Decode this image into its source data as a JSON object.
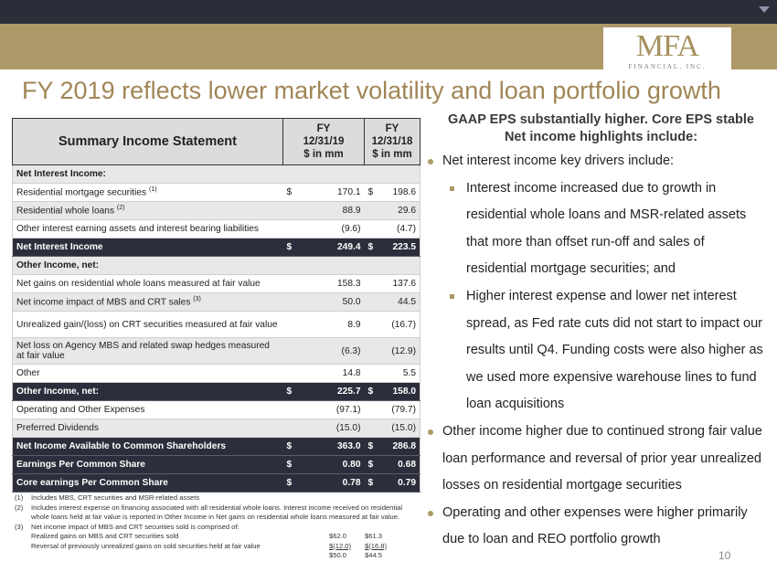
{
  "header": {
    "logo_main": "MFA",
    "logo_sub": "FINANCIAL, INC."
  },
  "title": "FY 2019 reflects lower market volatility and loan portfolio growth",
  "table": {
    "title": "Summary Income Statement",
    "col1": [
      "FY",
      "12/31/19",
      "$ in mm"
    ],
    "col2": [
      "FY",
      "12/31/18",
      "$ in mm"
    ],
    "rows": [
      {
        "label": "Net Interest Income:",
        "v1": "",
        "v2": ""
      },
      {
        "label": "Residential mortgage securities",
        "sup": "(1)",
        "d1": "$",
        "v1": "170.1",
        "d2": "$",
        "v2": "198.6"
      },
      {
        "label": "Residential whole loans",
        "sup": "(2)",
        "d1": "",
        "v1": "88.9",
        "d2": "",
        "v2": "29.6"
      },
      {
        "label": "Other interest earning assets and interest bearing liabilities",
        "d1": "",
        "v1": "(9.6)",
        "d2": "",
        "v2": "(4.7)"
      },
      {
        "label": "Net Interest Income",
        "d1": "$",
        "v1": "249.4",
        "d2": "$",
        "v2": "223.5"
      },
      {
        "label": "Other Income, net:",
        "v1": "",
        "v2": ""
      },
      {
        "label": "Net gains on residential whole loans measured at fair value",
        "d1": "",
        "v1": "158.3",
        "d2": "",
        "v2": "137.6"
      },
      {
        "label": "Net income impact of MBS and CRT sales",
        "sup": "(3)",
        "d1": "",
        "v1": "50.0",
        "d2": "",
        "v2": "44.5"
      },
      {
        "label": "Unrealized gain/(loss) on CRT securities measured at fair value",
        "d1": "",
        "v1": "8.9",
        "d2": "",
        "v2": "(16.7)"
      },
      {
        "label": "Net loss on Agency MBS and related swap hedges measured at fair value",
        "d1": "",
        "v1": "(6.3)",
        "d2": "",
        "v2": "(12.9)"
      },
      {
        "label": "Other",
        "d1": "",
        "v1": "14.8",
        "d2": "",
        "v2": "5.5"
      },
      {
        "label": "Other Income, net:",
        "d1": "$",
        "v1": "225.7",
        "d2": "$",
        "v2": "158.0"
      },
      {
        "label": "Operating and Other Expenses",
        "d1": "",
        "v1": "(97.1)",
        "d2": "",
        "v2": "(79.7)"
      },
      {
        "label": "Preferred Dividends",
        "d1": "",
        "v1": "(15.0)",
        "d2": "",
        "v2": "(15.0)"
      },
      {
        "label": "Net Income Available to Common Shareholders",
        "d1": "$",
        "v1": "363.0",
        "d2": "$",
        "v2": "286.8"
      },
      {
        "label": "Earnings Per Common Share",
        "d1": "$",
        "v1": "0.80",
        "d2": "$",
        "v2": "0.68"
      },
      {
        "label": "Core earnings Per Common Share",
        "d1": "$",
        "v1": "0.78",
        "d2": "$",
        "v2": "0.79"
      }
    ]
  },
  "footnotes": {
    "n1": {
      "num": "(1)",
      "text": "Includes MBS, CRT securities and MSR-related assets"
    },
    "n2": {
      "num": "(2)",
      "text": "Includes interest expense on financing associated with all residential whole loans. Interest income received on residential whole loans held at fair value is reported in Other Income in Net gains on residential whole loans measured at fair value."
    },
    "n3": {
      "num": "(3)",
      "text": "Net income impact of MBS and CRT securities sold is comprised of:"
    },
    "recon": [
      {
        "label": "Realized gains on MBS and CRT securities sold",
        "a": "$62.0",
        "b": "$61.3"
      },
      {
        "label": "Reversal of previously unrealized gains on sold securities held at fair value",
        "a": "$(12.0)",
        "b": "$(16.8)"
      },
      {
        "label": "",
        "a": "$50.0",
        "b": "$44.5"
      }
    ]
  },
  "right": {
    "heading1": "GAAP EPS substantially higher.  Core EPS stable",
    "heading2": "Net income highlights include:",
    "b1": "Net interest income key drivers include:",
    "b1a": "Interest income increased due to growth in residential whole loans and MSR-related assets that more than offset run-off and sales of residential mortgage securities; and",
    "b1b": "Higher interest expense and lower net interest spread, as Fed rate cuts did not start to impact our results until Q4.  Funding costs were also higher as we used more expensive warehouse lines to fund loan acquisitions",
    "b2": "Other income higher due to continued strong fair value loan performance and reversal of prior year unrealized losses on residential mortgage securities",
    "b3": "Operating and other expenses were higher primarily due to loan and REO portfolio growth"
  },
  "page_number": "10",
  "colors": {
    "gold": "#ad9868",
    "navy": "#2c2e3b",
    "title": "#a08656"
  }
}
